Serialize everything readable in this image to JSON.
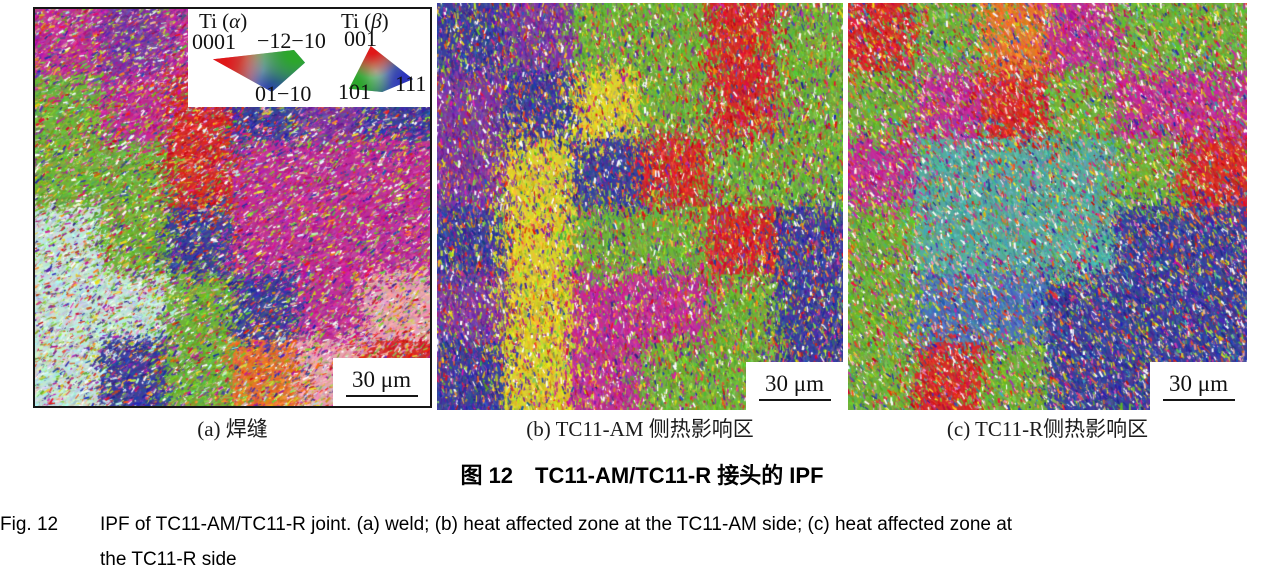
{
  "figure": {
    "zh_label": "图 12",
    "zh_title": "TC11-AM/TC11-R 接头的 IPF",
    "en_label": "Fig. 12",
    "en_caption_line1": "IPF of TC11-AM/TC11-R joint. (a) weld; (b) heat affected zone at the TC11-AM side; (c) heat affected zone at",
    "en_caption_line2": "the TC11-R side"
  },
  "legend": {
    "alpha": {
      "pre": "Ti (",
      "sym": "α",
      "post": ")",
      "v1": "0001",
      "v2": "−12−10",
      "v3": "01−10"
    },
    "beta": {
      "pre": "Ti (",
      "sym": "β",
      "post": ")",
      "v1": "001",
      "v2": "101",
      "v3": "111"
    },
    "corner_colors": {
      "red": "#e01818",
      "green": "#2ca62c",
      "blue": "#2d35bd"
    }
  },
  "panels": [
    {
      "key": "a",
      "caption": "(a) 焊缝",
      "scale_label": "30 μm",
      "texture": {
        "seed": 11,
        "angle": -35,
        "grid": [
          [
            "M",
            "P",
            "M",
            "P",
            "B",
            "P"
          ],
          [
            "G",
            "M",
            "R",
            "B",
            "P",
            "B"
          ],
          [
            "G",
            "G",
            "R",
            "M",
            "M",
            "M"
          ],
          [
            "C",
            "G",
            "B",
            "M",
            "M",
            "M"
          ],
          [
            "C",
            "C",
            "G",
            "B",
            "M",
            "K"
          ],
          [
            "C",
            "B",
            "G",
            "O",
            "K",
            "R"
          ]
        ],
        "random": [
          "M",
          "P",
          "B",
          "G",
          "L",
          "R",
          "O",
          "Y",
          "C",
          "K",
          "W"
        ]
      }
    },
    {
      "key": "b",
      "caption": "(b) TC11-AM 侧热影响区",
      "scale_label": "30 μm",
      "texture": {
        "seed": 22,
        "angle": 82,
        "grid": [
          [
            "B",
            "P",
            "G",
            "G",
            "R",
            "G"
          ],
          [
            "P",
            "B",
            "Y",
            "G",
            "R",
            "G"
          ],
          [
            "P",
            "Y",
            "B",
            "R",
            "G",
            "G"
          ],
          [
            "B",
            "Y",
            "G",
            "G",
            "R",
            "B"
          ],
          [
            "P",
            "Y",
            "M",
            "M",
            "G",
            "B"
          ],
          [
            "B",
            "Y",
            "M",
            "G",
            "G",
            "B"
          ]
        ],
        "random": [
          "B",
          "P",
          "G",
          "L",
          "R",
          "Y",
          "M",
          "O",
          "W"
        ]
      }
    },
    {
      "key": "c",
      "caption": "(c) TC11-R侧热影响区",
      "scale_label": "30 μm",
      "texture": {
        "seed": 33,
        "angle": 62,
        "grid": [
          [
            "R",
            "G",
            "O",
            "M",
            "G",
            "G"
          ],
          [
            "G",
            "M",
            "R",
            "G",
            "M",
            "M"
          ],
          [
            "M",
            "T",
            "T",
            "T",
            "G",
            "R"
          ],
          [
            "G",
            "T",
            "T",
            "T",
            "B",
            "B"
          ],
          [
            "G",
            "S",
            "S",
            "B",
            "B",
            "B"
          ],
          [
            "G",
            "R",
            "G",
            "B",
            "B",
            "B"
          ]
        ],
        "random": [
          "R",
          "G",
          "O",
          "M",
          "T",
          "B",
          "W",
          "K",
          "Y"
        ]
      }
    }
  ],
  "texture_colors": {
    "M": "#bf2f96",
    "P": "#7a3aa0",
    "B": "#3a3f9c",
    "S": "#4a72b8",
    "T": "#55ab9f",
    "G": "#6fb13a",
    "L": "#9ccf4a",
    "R": "#d42a2a",
    "O": "#e5762c",
    "Y": "#ddcf2e",
    "C": "#c2e4da",
    "K": "#e8a4ae",
    "W": "#ffffff"
  }
}
